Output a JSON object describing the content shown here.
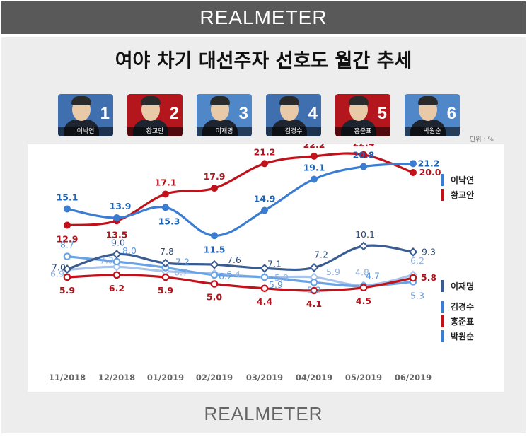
{
  "header": {
    "logo": "REALMETER"
  },
  "title": "여야 차기 대선주자 선호도 월간 추세",
  "unit": "단위 : %",
  "footer": {
    "logo": "REALMETER"
  },
  "portraits": [
    {
      "name": "이낙연",
      "num": "1",
      "bg": "#3f6fae"
    },
    {
      "name": "황교안",
      "num": "2",
      "bg": "#b3161d"
    },
    {
      "name": "이재명",
      "num": "3",
      "bg": "#4f87c9"
    },
    {
      "name": "김경수",
      "num": "4",
      "bg": "#3f6fae"
    },
    {
      "name": "홍준표",
      "num": "5",
      "bg": "#b3161d"
    },
    {
      "name": "박원순",
      "num": "6",
      "bg": "#4f87c9"
    }
  ],
  "chart_data": {
    "type": "line",
    "categories": [
      "11/2018",
      "12/2018",
      "01/2019",
      "02/2019",
      "03/2019",
      "04/2019",
      "05/2019",
      "06/2019"
    ],
    "series": [
      {
        "name": "이낙연",
        "color": "#3b7dd1",
        "marker": "circle",
        "values": [
          15.1,
          13.9,
          15.3,
          11.5,
          14.9,
          19.1,
          20.8,
          21.2
        ]
      },
      {
        "name": "황교안",
        "color": "#c0121b",
        "marker": "circle",
        "values": [
          12.9,
          13.5,
          17.1,
          17.9,
          21.2,
          22.2,
          22.4,
          20.0
        ]
      },
      {
        "name": "이재명",
        "color": "#3a5c91",
        "marker": "diamond",
        "values": [
          7.0,
          9.0,
          7.8,
          7.6,
          7.1,
          7.2,
          10.1,
          9.3
        ]
      },
      {
        "name": "김경수",
        "color": "#a9c4ea",
        "marker": "diamond",
        "values": [
          6.9,
          7.3,
          6.7,
          6.4,
          5.9,
          5.9,
          4.8,
          6.2
        ]
      },
      {
        "name": "홍준표",
        "color": "#c0121b",
        "marker": "circle-open",
        "values": [
          5.9,
          6.2,
          5.9,
          5.0,
          4.4,
          4.1,
          4.5,
          5.8
        ]
      },
      {
        "name": "박원순",
        "color": "#6aa3e4",
        "marker": "circle-open",
        "values": [
          8.7,
          8.0,
          7.2,
          6.2,
          5.9,
          5.2,
          4.7,
          5.3
        ]
      }
    ],
    "legend": [
      {
        "name": "이낙연",
        "color": "#3b7dd1"
      },
      {
        "name": "황교안",
        "color": "#c0121b"
      },
      {
        "name": "이재명",
        "color": "#3a5c91"
      },
      {
        "name": "김경수",
        "color": "#3b7dd1"
      },
      {
        "name": "홍준표",
        "color": "#c0121b"
      },
      {
        "name": "박원순",
        "color": "#3b7dd1"
      }
    ],
    "grid": false,
    "legend_position": "right"
  }
}
